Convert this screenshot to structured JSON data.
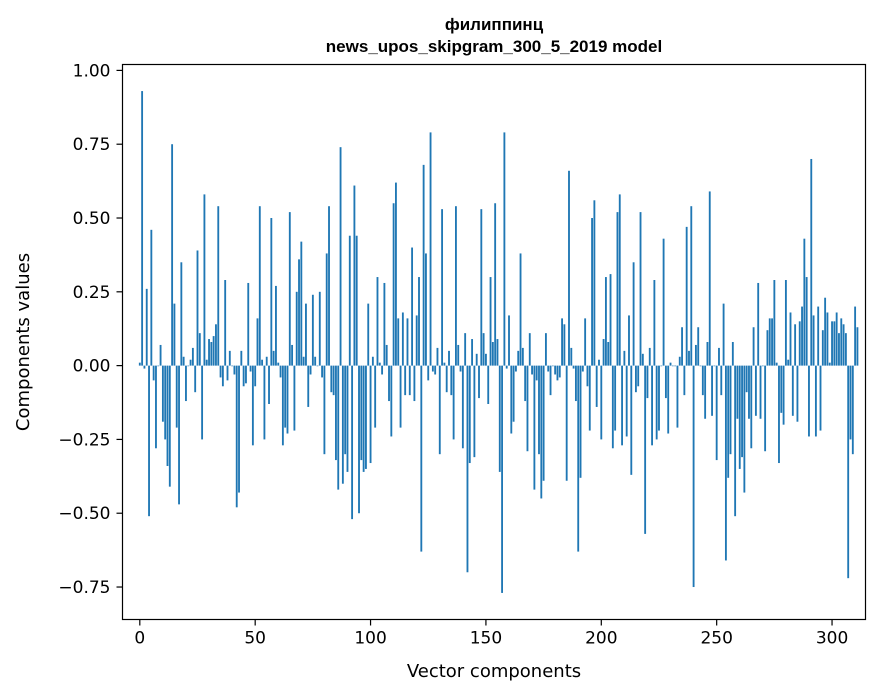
{
  "chart_data": {
    "type": "bar",
    "title": "филиппинц",
    "subtitle": "news_upos_skipgram_300_5_2019 model",
    "xlabel": "Vector components",
    "ylabel": "Components values",
    "xlim": [
      -7.5,
      314.5
    ],
    "ylim": [
      -0.86,
      1.02
    ],
    "xticks": [
      0,
      50,
      100,
      150,
      200,
      250,
      300
    ],
    "xtick_labels": [
      "0",
      "50",
      "100",
      "150",
      "200",
      "250",
      "300"
    ],
    "yticks": [
      -0.75,
      -0.5,
      -0.25,
      0.0,
      0.25,
      0.5,
      0.75,
      1.0
    ],
    "ytick_labels": [
      "−0.75",
      "−0.50",
      "−0.25",
      "0.00",
      "0.25",
      "0.50",
      "0.75",
      "1.00"
    ],
    "grid": false,
    "bar_color": "#1f77b4",
    "values": [
      0.01,
      0.93,
      -0.01,
      0.26,
      -0.51,
      0.46,
      -0.05,
      -0.28,
      0.0,
      0.07,
      -0.19,
      -0.25,
      -0.34,
      -0.41,
      0.75,
      0.21,
      -0.21,
      -0.47,
      0.35,
      0.03,
      -0.12,
      0.0,
      0.02,
      0.06,
      -0.09,
      0.39,
      0.11,
      -0.25,
      0.58,
      0.02,
      0.09,
      0.08,
      0.1,
      0.14,
      0.54,
      -0.04,
      -0.07,
      0.29,
      -0.05,
      0.05,
      0.0,
      -0.03,
      -0.48,
      -0.43,
      0.05,
      -0.07,
      -0.06,
      0.28,
      -0.02,
      -0.27,
      -0.07,
      0.16,
      0.54,
      0.02,
      -0.25,
      0.03,
      -0.13,
      0.5,
      0.05,
      0.27,
      0.01,
      -0.04,
      -0.27,
      -0.21,
      -0.23,
      0.52,
      0.07,
      -0.22,
      0.25,
      0.36,
      0.42,
      0.03,
      0.21,
      -0.14,
      -0.03,
      0.24,
      0.03,
      0.0,
      0.25,
      -0.04,
      -0.3,
      0.38,
      0.54,
      -0.09,
      -0.1,
      -0.32,
      -0.42,
      0.74,
      -0.4,
      -0.3,
      -0.36,
      0.44,
      -0.52,
      0.61,
      0.44,
      -0.5,
      -0.32,
      -0.36,
      -0.35,
      0.21,
      -0.33,
      0.03,
      -0.21,
      0.3,
      0.01,
      -0.03,
      0.28,
      0.07,
      -0.12,
      -0.24,
      0.55,
      0.62,
      0.16,
      -0.21,
      0.18,
      -0.1,
      0.16,
      -0.1,
      0.4,
      -0.12,
      0.17,
      0.3,
      -0.63,
      0.68,
      0.38,
      -0.05,
      0.79,
      -0.02,
      -0.03,
      0.06,
      -0.3,
      0.53,
      0.01,
      -0.09,
      0.05,
      -0.1,
      -0.25,
      0.54,
      0.07,
      -0.02,
      -0.28,
      0.11,
      -0.7,
      -0.33,
      0.09,
      -0.31,
      0.04,
      -0.11,
      0.53,
      0.11,
      0.04,
      -0.13,
      0.3,
      0.08,
      0.55,
      0.09,
      -0.36,
      -0.77,
      0.79,
      -0.01,
      0.17,
      -0.23,
      -0.19,
      -0.02,
      0.05,
      0.38,
      0.06,
      -0.12,
      -0.29,
      0.11,
      -0.03,
      -0.42,
      -0.05,
      -0.3,
      -0.45,
      -0.39,
      0.11,
      -0.02,
      -0.1,
      0.0,
      -0.03,
      -0.05,
      -0.04,
      0.16,
      0.14,
      -0.39,
      0.66,
      0.06,
      -0.01,
      -0.12,
      -0.63,
      -0.38,
      -0.02,
      0.16,
      -0.07,
      -0.22,
      0.5,
      0.56,
      -0.14,
      0.02,
      -0.25,
      0.09,
      0.3,
      0.08,
      0.31,
      -0.28,
      -0.22,
      0.52,
      0.58,
      -0.27,
      0.05,
      -0.24,
      0.17,
      -0.37,
      0.35,
      -0.09,
      -0.07,
      0.52,
      0.04,
      -0.57,
      -0.11,
      0.06,
      -0.27,
      0.29,
      -0.25,
      -0.22,
      0.0,
      0.43,
      -0.11,
      -0.23,
      0.01,
      0.0,
      0.0,
      -0.21,
      0.03,
      0.13,
      -0.1,
      0.47,
      0.05,
      0.54,
      -0.75,
      0.07,
      0.13,
      0.0,
      -0.1,
      -0.18,
      0.08,
      0.59,
      -0.17,
      0.0,
      -0.32,
      0.06,
      -0.1,
      0.21,
      -0.66,
      -0.38,
      -0.3,
      0.08,
      -0.51,
      -0.18,
      -0.35,
      -0.31,
      -0.43,
      -0.09,
      -0.18,
      -0.28,
      0.13,
      -0.17,
      0.28,
      -0.18,
      0.0,
      -0.29,
      0.12,
      0.16,
      0.16,
      0.29,
      0.01,
      -0.33,
      -0.16,
      -0.2,
      0.29,
      0.02,
      0.18,
      -0.17,
      0.14,
      -0.19,
      0.15,
      0.2,
      0.43,
      0.3,
      -0.24,
      0.7,
      0.17,
      -0.24,
      0.2,
      -0.22,
      0.12,
      0.23,
      0.18,
      0.01,
      0.15,
      0.15,
      0.18,
      0.11,
      0.16,
      0.14,
      0.11,
      -0.72,
      -0.25,
      -0.3,
      0.2,
      0.13
    ]
  }
}
